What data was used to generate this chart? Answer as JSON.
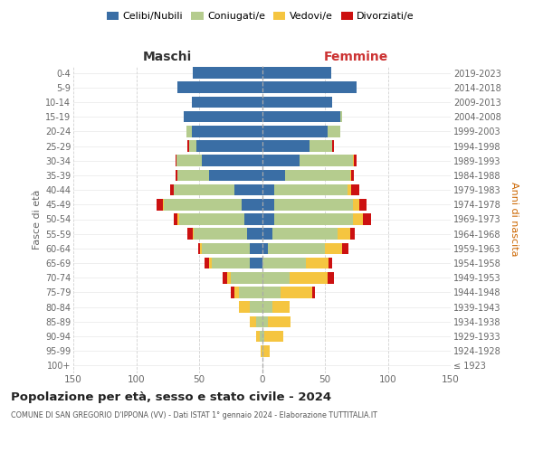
{
  "age_groups": [
    "100+",
    "95-99",
    "90-94",
    "85-89",
    "80-84",
    "75-79",
    "70-74",
    "65-69",
    "60-64",
    "55-59",
    "50-54",
    "45-49",
    "40-44",
    "35-39",
    "30-34",
    "25-29",
    "20-24",
    "15-19",
    "10-14",
    "5-9",
    "0-4"
  ],
  "birth_years": [
    "≤ 1923",
    "1924-1928",
    "1929-1933",
    "1934-1938",
    "1939-1943",
    "1944-1948",
    "1949-1953",
    "1954-1958",
    "1959-1963",
    "1964-1968",
    "1969-1973",
    "1974-1978",
    "1979-1983",
    "1984-1988",
    "1989-1993",
    "1994-1998",
    "1999-2003",
    "2004-2008",
    "2009-2013",
    "2014-2018",
    "2019-2023"
  ],
  "maschi": {
    "celibi": [
      0,
      0,
      0,
      0,
      0,
      0,
      0,
      10,
      10,
      12,
      14,
      16,
      22,
      42,
      48,
      52,
      56,
      62,
      56,
      67,
      55
    ],
    "coniugati": [
      0,
      0,
      2,
      5,
      10,
      18,
      25,
      30,
      38,
      42,
      52,
      62,
      48,
      25,
      20,
      6,
      4,
      0,
      0,
      0,
      0
    ],
    "vedovi": [
      0,
      1,
      3,
      5,
      8,
      4,
      3,
      2,
      1,
      1,
      1,
      1,
      0,
      0,
      0,
      0,
      0,
      0,
      0,
      0,
      0
    ],
    "divorziati": [
      0,
      0,
      0,
      0,
      0,
      3,
      3,
      4,
      2,
      4,
      3,
      5,
      3,
      2,
      1,
      1,
      0,
      0,
      0,
      0,
      0
    ]
  },
  "femmine": {
    "nubili": [
      0,
      0,
      0,
      0,
      0,
      0,
      0,
      0,
      5,
      8,
      10,
      10,
      10,
      18,
      30,
      38,
      52,
      62,
      56,
      75,
      55
    ],
    "coniugate": [
      0,
      1,
      2,
      5,
      8,
      15,
      22,
      35,
      45,
      52,
      62,
      62,
      58,
      52,
      42,
      18,
      10,
      2,
      0,
      0,
      0
    ],
    "vedove": [
      0,
      5,
      15,
      18,
      14,
      25,
      30,
      18,
      14,
      10,
      8,
      5,
      3,
      1,
      1,
      0,
      0,
      0,
      0,
      0,
      0
    ],
    "divorziate": [
      0,
      0,
      0,
      0,
      0,
      2,
      5,
      3,
      5,
      4,
      7,
      6,
      6,
      2,
      2,
      1,
      0,
      0,
      0,
      0,
      0
    ]
  },
  "colors": {
    "celibi": "#3a6ea5",
    "coniugati": "#b5cc8e",
    "vedovi": "#f5c540",
    "divorziati": "#cc1111"
  },
  "xlim": 150,
  "title": "Popolazione per età, sesso e stato civile - 2024",
  "subtitle": "COMUNE DI SAN GREGORIO D'IPPONA (VV) - Dati ISTAT 1° gennaio 2024 - Elaborazione TUTTITALIA.IT",
  "ylabel_left": "Fasce di età",
  "ylabel_right": "Anni di nascita",
  "header_maschi": "Maschi",
  "header_femmine": "Femmine",
  "legend_labels": [
    "Celibi/Nubili",
    "Coniugati/e",
    "Vedovi/e",
    "Divorziati/e"
  ],
  "bg_color": "#ffffff",
  "grid_color_x": "#cccccc",
  "grid_color_y": "#dddddd",
  "tick_color": "#666666",
  "title_color": "#222222",
  "subtitle_color": "#555555",
  "maschi_color": "#333333",
  "femmine_color": "#cc3333",
  "right_ylabel_color": "#cc6600"
}
